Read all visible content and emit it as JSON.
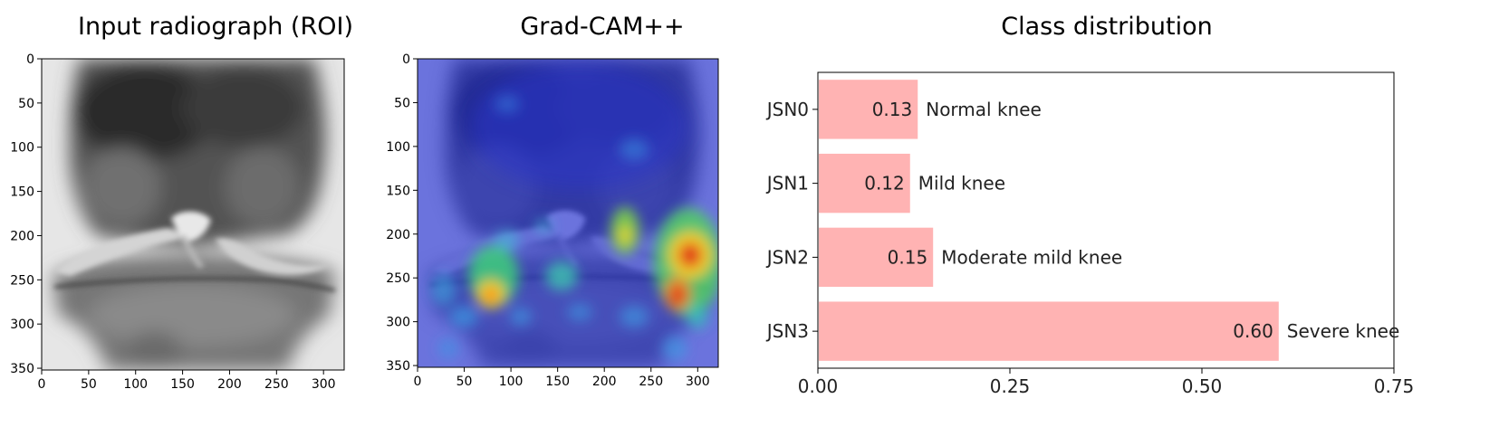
{
  "panels": {
    "radiograph": {
      "title": "Input radiograph (ROI)",
      "x_ticks": [
        "0",
        "50",
        "100",
        "150",
        "200",
        "250",
        "300"
      ],
      "y_ticks": [
        "0",
        "50",
        "100",
        "150",
        "200",
        "250",
        "300",
        "350"
      ],
      "x_range": [
        0,
        322
      ],
      "y_range": [
        0,
        352
      ]
    },
    "gradcam": {
      "title": "Grad-CAM++",
      "x_ticks": [
        "0",
        "50",
        "100",
        "150",
        "200",
        "250",
        "300"
      ],
      "y_ticks": [
        "0",
        "50",
        "100",
        "150",
        "200",
        "250",
        "300",
        "350"
      ],
      "x_range": [
        0,
        322
      ],
      "y_range": [
        0,
        352
      ]
    }
  },
  "chart_data": {
    "type": "bar",
    "orientation": "horizontal",
    "title": "Class distribution",
    "categories": [
      "JSN0",
      "JSN1",
      "JSN2",
      "JSN3"
    ],
    "values": [
      0.13,
      0.12,
      0.15,
      0.6
    ],
    "value_labels": [
      "0.13",
      "0.12",
      "0.15",
      "0.60"
    ],
    "annotations": [
      "Normal knee",
      "Mild knee",
      "Moderate mild knee",
      "Severe knee"
    ],
    "xlim": [
      0,
      0.75
    ],
    "x_ticks": [
      "0.00",
      "0.25",
      "0.50",
      "0.75"
    ],
    "bar_color": "#ffb3b3",
    "grid": false
  }
}
